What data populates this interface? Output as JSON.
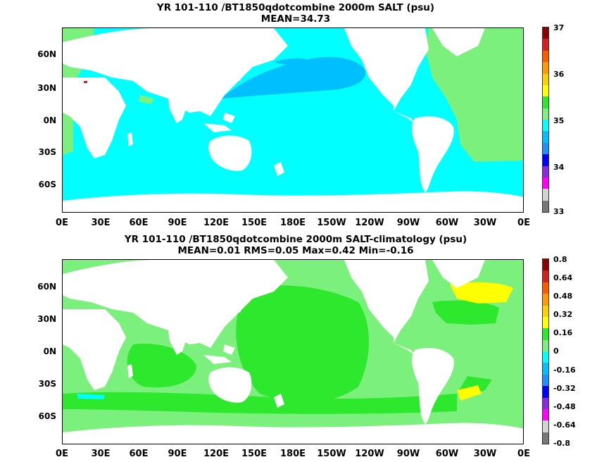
{
  "panels": [
    {
      "title": "YR 101-110 /BT1850qdotcombine 2000m SALT (psu)",
      "subtitle": "MEAN=34.73",
      "lat_labels": [
        "60N",
        "30N",
        "0N",
        "30S",
        "60S"
      ],
      "lon_labels": [
        "0E",
        "30E",
        "60E",
        "90E",
        "120E",
        "150E",
        "180E",
        "150W",
        "120W",
        "90W",
        "60W",
        "30W",
        "0E"
      ],
      "colorbar_labels": [
        "37",
        "36",
        "35",
        "34",
        "33"
      ],
      "colorbar_colors": [
        "#8b0000",
        "#d62020",
        "#ff5a00",
        "#ff9a00",
        "#ffd000",
        "#ffff00",
        "#2ee82e",
        "#7cf07c",
        "#00ffff",
        "#00bfff",
        "#1e90ff",
        "#0000ff",
        "#8a2be2",
        "#ff00ff",
        "#d3d3d3",
        "#777777"
      ]
    },
    {
      "title": "YR 101-110 /BT1850qdotcombine 2000m SALT-climatology (psu)",
      "subtitle": "MEAN=0.01   RMS=0.05   Max=0.42   Min=-0.16",
      "lat_labels": [
        "60N",
        "30N",
        "0N",
        "30S",
        "60S"
      ],
      "lon_labels": [
        "0E",
        "30E",
        "60E",
        "90E",
        "120E",
        "150E",
        "180E",
        "150W",
        "120W",
        "90W",
        "60W",
        "30W",
        "0E"
      ],
      "colorbar_labels": [
        "0.8",
        "0.64",
        "0.48",
        "0.32",
        "0.16",
        "0",
        "-0.16",
        "-0.32",
        "-0.48",
        "-0.64",
        "-0.8"
      ],
      "colorbar_colors": [
        "#8b0000",
        "#d62020",
        "#ff5a00",
        "#ff9a00",
        "#ffd000",
        "#ffff00",
        "#2ee82e",
        "#7cf07c",
        "#00ffff",
        "#00bfff",
        "#1e90ff",
        "#0000ff",
        "#8a2be2",
        "#ff00ff",
        "#d3d3d3",
        "#777777"
      ]
    }
  ]
}
